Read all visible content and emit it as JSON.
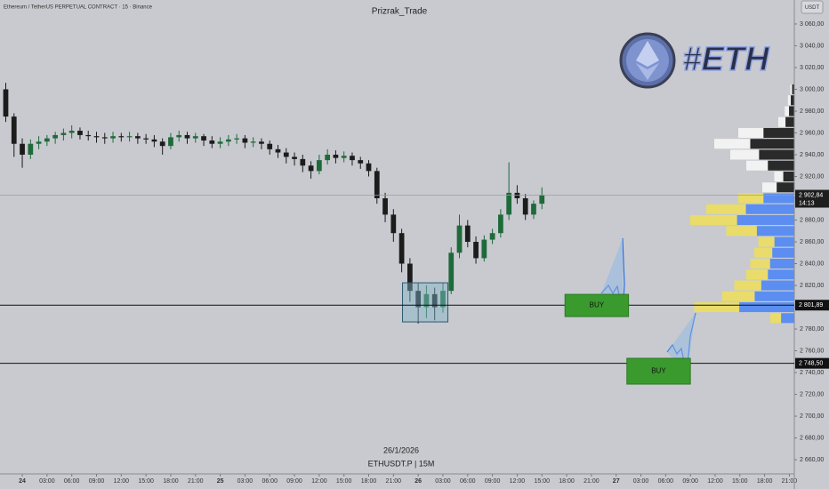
{
  "header": {
    "symbol_line": "Ethereum / TetherUS PERPETUAL CONTRACT · 15 · Binance",
    "title": "Prizrak_Trade",
    "currency": "USDT",
    "hashtag": "#ETH"
  },
  "footer": {
    "date": "26/1/2026",
    "ticker": "ETHUSDT.P | 15M"
  },
  "chart_data": {
    "type": "candlestick",
    "up_color": "#1f6a3a",
    "down_color": "#1c1c1c",
    "x": [
      -2,
      -1,
      0,
      1,
      2,
      3,
      4,
      5,
      6,
      7,
      8,
      9,
      10,
      11,
      12,
      13,
      14,
      15,
      16,
      17,
      18,
      19,
      20,
      21,
      22,
      23,
      24,
      25,
      26,
      27,
      28,
      29,
      30,
      31,
      32,
      33,
      34,
      35,
      36,
      37,
      38,
      39,
      40,
      41,
      42,
      43,
      44,
      45,
      46,
      47,
      48,
      49,
      50,
      51,
      52,
      53,
      54,
      55,
      56,
      57,
      58,
      59,
      60,
      61,
      62,
      63
    ],
    "ohlc": [
      [
        3000,
        3006,
        2970,
        2975
      ],
      [
        2975,
        2978,
        2938,
        2950
      ],
      [
        2950,
        2955,
        2928,
        2940
      ],
      [
        2940,
        2954,
        2936,
        2950
      ],
      [
        2950,
        2957,
        2945,
        2952
      ],
      [
        2952,
        2958,
        2948,
        2955
      ],
      [
        2955,
        2961,
        2950,
        2958
      ],
      [
        2958,
        2964,
        2953,
        2960
      ],
      [
        2960,
        2967,
        2955,
        2962
      ],
      [
        2962,
        2965,
        2954,
        2958
      ],
      [
        2958,
        2962,
        2953,
        2957
      ],
      [
        2957,
        2961,
        2951,
        2956
      ],
      [
        2956,
        2960,
        2950,
        2955
      ],
      [
        2955,
        2961,
        2951,
        2957
      ],
      [
        2957,
        2960,
        2952,
        2956
      ],
      [
        2956,
        2961,
        2952,
        2957
      ],
      [
        2957,
        2960,
        2950,
        2955
      ],
      [
        2955,
        2959,
        2950,
        2954
      ],
      [
        2954,
        2958,
        2947,
        2952
      ],
      [
        2952,
        2955,
        2940,
        2948
      ],
      [
        2948,
        2960,
        2945,
        2956
      ],
      [
        2956,
        2962,
        2952,
        2958
      ],
      [
        2958,
        2961,
        2950,
        2955
      ],
      [
        2955,
        2960,
        2951,
        2957
      ],
      [
        2957,
        2959,
        2948,
        2953
      ],
      [
        2953,
        2957,
        2946,
        2950
      ],
      [
        2950,
        2956,
        2946,
        2952
      ],
      [
        2952,
        2958,
        2948,
        2954
      ],
      [
        2954,
        2959,
        2950,
        2955
      ],
      [
        2955,
        2958,
        2946,
        2951
      ],
      [
        2951,
        2956,
        2947,
        2952
      ],
      [
        2952,
        2955,
        2945,
        2950
      ],
      [
        2950,
        2953,
        2940,
        2945
      ],
      [
        2945,
        2949,
        2937,
        2942
      ],
      [
        2942,
        2946,
        2932,
        2938
      ],
      [
        2938,
        2942,
        2930,
        2936
      ],
      [
        2936,
        2940,
        2924,
        2930
      ],
      [
        2930,
        2934,
        2918,
        2925
      ],
      [
        2925,
        2940,
        2922,
        2935
      ],
      [
        2935,
        2945,
        2931,
        2940
      ],
      [
        2940,
        2944,
        2932,
        2937
      ],
      [
        2937,
        2943,
        2933,
        2939
      ],
      [
        2939,
        2942,
        2930,
        2935
      ],
      [
        2935,
        2938,
        2927,
        2932
      ],
      [
        2932,
        2935,
        2920,
        2925
      ],
      [
        2925,
        2928,
        2895,
        2900
      ],
      [
        2900,
        2905,
        2878,
        2885
      ],
      [
        2885,
        2890,
        2860,
        2868
      ],
      [
        2868,
        2872,
        2832,
        2840
      ],
      [
        2840,
        2845,
        2805,
        2815
      ],
      [
        2815,
        2822,
        2785,
        2800
      ],
      [
        2800,
        2820,
        2790,
        2812
      ],
      [
        2812,
        2818,
        2788,
        2800
      ],
      [
        2800,
        2822,
        2795,
        2815
      ],
      [
        2815,
        2855,
        2812,
        2850
      ],
      [
        2850,
        2885,
        2845,
        2875
      ],
      [
        2875,
        2880,
        2855,
        2860
      ],
      [
        2860,
        2865,
        2840,
        2845
      ],
      [
        2845,
        2866,
        2842,
        2862
      ],
      [
        2862,
        2872,
        2858,
        2868
      ],
      [
        2868,
        2890,
        2864,
        2885
      ],
      [
        2885,
        2933,
        2880,
        2905
      ],
      [
        2905,
        2912,
        2895,
        2900
      ],
      [
        2900,
        2904,
        2880,
        2885
      ],
      [
        2885,
        2898,
        2881,
        2895
      ],
      [
        2895,
        2910,
        2890,
        2902.84
      ]
    ],
    "xlim": [
      -2.7,
      93.6
    ],
    "xticks": [
      {
        "value": 0,
        "label": "24"
      },
      {
        "value": 3,
        "label": "03:00"
      },
      {
        "value": 6,
        "label": "06:00"
      },
      {
        "value": 9,
        "label": "09:00"
      },
      {
        "value": 12,
        "label": "12:00"
      },
      {
        "value": 15,
        "label": "15:00"
      },
      {
        "value": 18,
        "label": "18:00"
      },
      {
        "value": 21,
        "label": "21:00"
      },
      {
        "value": 24,
        "label": "25"
      },
      {
        "value": 27,
        "label": "03:00"
      },
      {
        "value": 30,
        "label": "06:00"
      },
      {
        "value": 33,
        "label": "09:00"
      },
      {
        "value": 36,
        "label": "12:00"
      },
      {
        "value": 39,
        "label": "15:00"
      },
      {
        "value": 42,
        "label": "18:00"
      },
      {
        "value": 45,
        "label": "21:00"
      },
      {
        "value": 48,
        "label": "26"
      },
      {
        "value": 51,
        "label": "03:00"
      },
      {
        "value": 54,
        "label": "06:00"
      },
      {
        "value": 57,
        "label": "09:00"
      },
      {
        "value": 60,
        "label": "12:00"
      },
      {
        "value": 63,
        "label": "15:00"
      },
      {
        "value": 66,
        "label": "18:00"
      },
      {
        "value": 69,
        "label": "21:00"
      },
      {
        "value": 72,
        "label": "27"
      },
      {
        "value": 75,
        "label": "03:00"
      },
      {
        "value": 78,
        "label": "06:00"
      },
      {
        "value": 81,
        "label": "09:00"
      },
      {
        "value": 84,
        "label": "12:00"
      },
      {
        "value": 87,
        "label": "15:00"
      },
      {
        "value": 90,
        "label": "18:00"
      },
      {
        "value": 93,
        "label": "21:00"
      }
    ],
    "ylim": [
      2647,
      3082
    ],
    "yticks": [
      {
        "value": 3060,
        "label": "3 060,00"
      },
      {
        "value": 3040,
        "label": "3 040,00"
      },
      {
        "value": 3020,
        "label": "3 020,00"
      },
      {
        "value": 3000,
        "label": "3 000,00"
      },
      {
        "value": 2980,
        "label": "2 980,00"
      },
      {
        "value": 2960,
        "label": "2 960,00"
      },
      {
        "value": 2940,
        "label": "2 940,00"
      },
      {
        "value": 2920,
        "label": "2 920,00"
      },
      {
        "value": 2900,
        "label": "2 900,00"
      },
      {
        "value": 2880,
        "label": "2 880,00"
      },
      {
        "value": 2860,
        "label": "2 860,00"
      },
      {
        "value": 2840,
        "label": "2 840,00"
      },
      {
        "value": 2820,
        "label": "2 820,00"
      },
      {
        "value": 2800,
        "label": "2 800,00"
      },
      {
        "value": 2780,
        "label": "2 780,00"
      },
      {
        "value": 2760,
        "label": "2 760,00"
      },
      {
        "value": 2740,
        "label": "2 740,00"
      },
      {
        "value": 2720,
        "label": "2 720,00"
      },
      {
        "value": 2700,
        "label": "2 700,00"
      },
      {
        "value": 2680,
        "label": "2 680,00"
      },
      {
        "value": 2660,
        "label": "2 660,00"
      }
    ],
    "last_price": {
      "value": 2902.84,
      "label": "2 902,84"
    },
    "countdown": "14:13",
    "levels": [
      {
        "value": 2801.89,
        "label": "2 801,89"
      },
      {
        "value": 2748.5,
        "label": "2 748,50"
      }
    ],
    "range_box": {
      "x": [
        46.1,
        51.6
      ],
      "y": [
        2786.5,
        2822.4
      ]
    },
    "zones": [
      {
        "label": "BUY",
        "x": [
          65.8,
          73.5
        ],
        "y": [
          2791.4,
          2811.8
        ]
      },
      {
        "label": "BUY",
        "x": [
          73.3,
          81.0
        ],
        "y": [
          2729.4,
          2753.1
        ]
      }
    ],
    "volume_profile": {
      "levels": [
        2790,
        2800,
        2810,
        2820,
        2830,
        2840,
        2850,
        2860,
        2870,
        2880,
        2890,
        2900,
        2910,
        2920,
        2930,
        2940,
        2950,
        2960,
        2970,
        2980,
        2990,
        3000
      ],
      "values": [
        30,
        125,
        90,
        75,
        60,
        55,
        50,
        45,
        85,
        130,
        110,
        70,
        40,
        25,
        60,
        80,
        100,
        70,
        20,
        12,
        8,
        5
      ]
    }
  }
}
